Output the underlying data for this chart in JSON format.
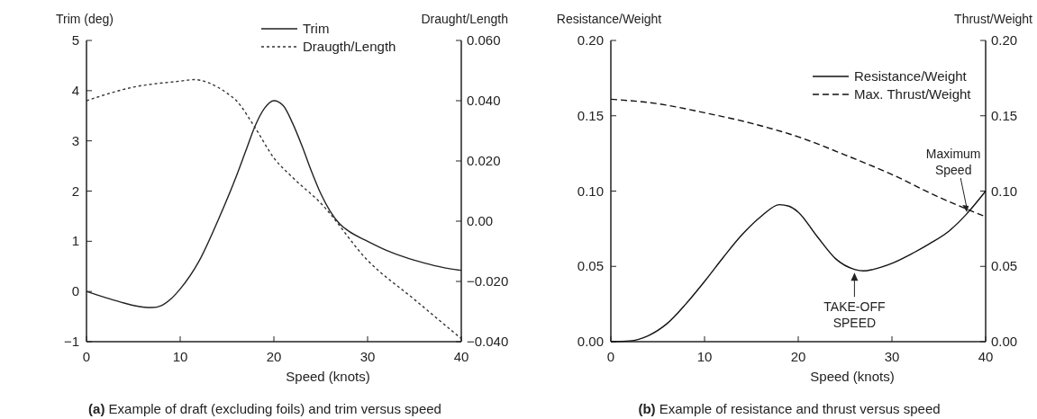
{
  "chart_data": [
    {
      "type": "line",
      "xlabel": "Speed (knots)",
      "ylabel": "Trim (deg)",
      "y2label": "Draught/Length",
      "annotations": [
        "(a) Example of draft (excluding foils) and trim versus speed"
      ],
      "xlim": [
        0,
        40
      ],
      "xticks": [
        0,
        10,
        20,
        30,
        40
      ],
      "ylim": [
        -1,
        5
      ],
      "yticks": [
        {
          "value": -1,
          "label": "−1"
        },
        0,
        1,
        2,
        3,
        4,
        5
      ],
      "y2lim": [
        -0.04,
        0.06
      ],
      "y2ticks": [
        {
          "value": -0.04,
          "label": "−0.040"
        },
        {
          "value": -0.02,
          "label": "−0.020"
        },
        {
          "value": 0,
          "label": "0.00"
        },
        {
          "value": 0.02,
          "label": "0.020"
        },
        {
          "value": 0.04,
          "label": "0.040"
        },
        {
          "value": 0.06,
          "label": "0.060"
        }
      ],
      "legend": "top",
      "grid": false,
      "series": [
        {
          "name": "Trim",
          "color": "#222222",
          "line_style": "solid",
          "x": [
            0,
            2,
            4,
            6,
            7,
            8,
            9,
            10,
            12,
            14,
            16,
            17,
            18,
            19,
            20,
            21,
            22,
            23,
            24,
            25,
            26,
            27,
            28,
            30,
            32,
            34,
            36,
            38,
            40
          ],
          "values": [
            0,
            -0.12,
            -0.23,
            -0.31,
            -0.32,
            -0.28,
            -0.15,
            0.05,
            0.6,
            1.4,
            2.3,
            2.8,
            3.3,
            3.65,
            3.8,
            3.7,
            3.35,
            2.9,
            2.4,
            1.95,
            1.6,
            1.35,
            1.2,
            1.0,
            0.82,
            0.68,
            0.57,
            0.48,
            0.42
          ]
        },
        {
          "name": "Draugth/Length",
          "color": "#333333",
          "line_style": "dotted",
          "axis": "y2",
          "x": [
            0,
            5,
            10,
            11.5,
            13,
            14,
            15,
            16,
            18,
            20,
            22,
            25,
            30,
            35,
            40
          ],
          "values": [
            0.04,
            0.0445,
            0.0465,
            0.047,
            0.046,
            0.0445,
            0.0425,
            0.04,
            0.031,
            0.021,
            0.0145,
            0.006,
            -0.013,
            -0.026,
            -0.039
          ]
        }
      ]
    },
    {
      "type": "line",
      "xlabel": "Speed (knots)",
      "ylabel": "Resistance/Weight",
      "y2label": "Thrust/Weight",
      "annotations": [
        {
          "text": "Maximum\nSpeed",
          "x": 38,
          "y": 0.086
        },
        {
          "text": "TAKE-OFF\nSPEED",
          "x": 26,
          "y": 0.047
        },
        "(b) Example of resistance and thrust versus speed"
      ],
      "xlim": [
        0,
        40
      ],
      "xticks": [
        0,
        10,
        20,
        30,
        40
      ],
      "ylim": [
        0,
        0.2
      ],
      "yticks": [
        {
          "value": 0,
          "label": "0.00"
        },
        {
          "value": 0.05,
          "label": "0.05"
        },
        {
          "value": 0.1,
          "label": "0.10"
        },
        {
          "value": 0.15,
          "label": "0.15"
        },
        {
          "value": 0.2,
          "label": "0.20"
        }
      ],
      "y2lim": [
        0,
        0.2
      ],
      "y2ticks": [
        {
          "value": 0,
          "label": "0.00"
        },
        {
          "value": 0.05,
          "label": "0.05"
        },
        {
          "value": 0.1,
          "label": "0.10"
        },
        {
          "value": 0.15,
          "label": "0.15"
        },
        {
          "value": 0.2,
          "label": "0.20"
        }
      ],
      "legend": "top right",
      "grid": false,
      "series": [
        {
          "name": "Resistance/Weight",
          "color": "#111111",
          "line_style": "solid",
          "x": [
            0,
            2,
            4,
            6,
            8,
            10,
            12,
            14,
            16,
            18,
            19,
            20,
            22,
            24,
            26,
            27,
            28,
            30,
            32,
            34,
            36,
            38,
            40
          ],
          "values": [
            0,
            0.0005,
            0.004,
            0.012,
            0.025,
            0.04,
            0.056,
            0.071,
            0.083,
            0.091,
            0.09,
            0.086,
            0.07,
            0.055,
            0.048,
            0.047,
            0.048,
            0.052,
            0.058,
            0.065,
            0.073,
            0.085,
            0.1
          ]
        },
        {
          "name": "Max. Thrust/Weight",
          "color": "#111111",
          "line_style": "dashed",
          "axis": "y2",
          "x": [
            0,
            5,
            10,
            15,
            20,
            25,
            30,
            35,
            38,
            40
          ],
          "values": [
            0.161,
            0.158,
            0.152,
            0.145,
            0.136,
            0.124,
            0.111,
            0.096,
            0.088,
            0.083
          ]
        }
      ]
    }
  ]
}
